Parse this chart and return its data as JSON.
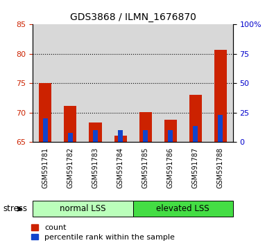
{
  "title": "GDS3868 / ILMN_1676870",
  "categories": [
    "GSM591781",
    "GSM591782",
    "GSM591783",
    "GSM591784",
    "GSM591785",
    "GSM591786",
    "GSM591787",
    "GSM591788"
  ],
  "red_values": [
    75.0,
    71.1,
    68.3,
    66.1,
    70.1,
    68.8,
    73.0,
    80.7
  ],
  "blue_values_pct": [
    20,
    8,
    10,
    10,
    10,
    10,
    14,
    23
  ],
  "left_ylim": [
    65,
    85
  ],
  "left_yticks": [
    65,
    70,
    75,
    80,
    85
  ],
  "right_yticks_pct": [
    0,
    25,
    50,
    75,
    100
  ],
  "red_color": "#cc2200",
  "blue_color": "#1144cc",
  "bar_bg_color": "#d8d8d8",
  "group1_label": "normal LSS",
  "group2_label": "elevated LSS",
  "group1_bg": "#bbffbb",
  "group2_bg": "#44dd44",
  "stress_label": "stress",
  "legend_count": "count",
  "legend_percentile": "percentile rank within the sample",
  "left_tick_color": "#cc2200",
  "right_tick_color": "#0000cc",
  "ytick_dotted": [
    70,
    75,
    80
  ],
  "base": 65,
  "bar_width": 0.5,
  "blue_bar_width": 0.18
}
